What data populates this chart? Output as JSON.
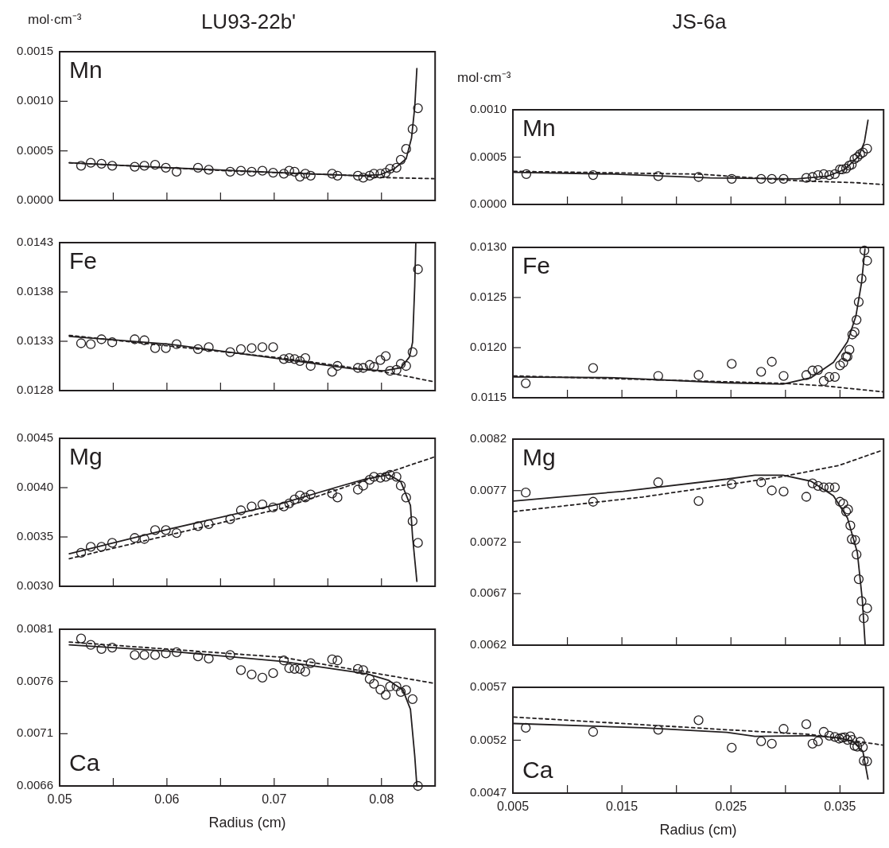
{
  "chart_data": [
    {
      "type": "scatter",
      "title": "LU93-22b'",
      "ylabel": "mol·cm⁻³",
      "annotations": [
        "Mn"
      ],
      "xlim": [
        0.05,
        0.085
      ],
      "xticks": [
        0.05,
        {
          "value": 0.055,
          "label": null
        },
        0.06,
        {
          "value": 0.065,
          "label": null
        },
        0.07,
        {
          "value": 0.075,
          "label": null
        },
        0.08
      ],
      "ylim": [
        0,
        0.0015
      ],
      "yticks": [
        {
          "value": 0,
          "label": "0.0000"
        },
        {
          "value": 0.0005,
          "label": "0.0005"
        },
        {
          "value": 0.001,
          "label": "0.0010"
        },
        {
          "value": 0.0015,
          "label": "0.0015"
        }
      ],
      "tick_labels": "y",
      "grid": false,
      "legend": false,
      "series": [
        {
          "type": "scatter",
          "marker": "circle",
          "color": "#231f20",
          "x": [
            0.052,
            0.0529,
            0.0539,
            0.0549,
            0.057,
            0.0579,
            0.0589,
            0.0599,
            0.0609,
            0.0629,
            0.0639,
            0.0659,
            0.0669,
            0.0679,
            0.0689,
            0.0699,
            0.0709,
            0.0714,
            0.0719,
            0.0724,
            0.0729,
            0.0734,
            0.0754,
            0.0759,
            0.0778,
            0.0783,
            0.0789,
            0.0793,
            0.0799,
            0.0804,
            0.0808,
            0.0814,
            0.0818,
            0.0823,
            0.0829,
            0.0834
          ],
          "values": [
            0.00035,
            0.00038,
            0.00037,
            0.00035,
            0.00034,
            0.00035,
            0.00036,
            0.00033,
            0.00029,
            0.00033,
            0.00031,
            0.00029,
            0.0003,
            0.00029,
            0.0003,
            0.00028,
            0.00027,
            0.0003,
            0.00029,
            0.00024,
            0.00027,
            0.00025,
            0.00027,
            0.00025,
            0.00025,
            0.00023,
            0.00025,
            0.00027,
            0.00027,
            0.00028,
            0.00032,
            0.00033,
            0.00041,
            0.00052,
            0.00072,
            0.00093
          ]
        },
        {
          "type": "line",
          "marker": "none",
          "line_style": "solid",
          "color": "#231f20",
          "x": [
            0.0509,
            0.0602,
            0.0707,
            0.0778,
            0.0799,
            0.0812,
            0.0823,
            0.0828,
            0.0831,
            0.0833
          ],
          "values": [
            0.00038,
            0.00033,
            0.00028,
            0.00025,
            0.00026,
            0.00032,
            0.00042,
            0.00063,
            0.00094,
            0.00133
          ]
        },
        {
          "type": "line",
          "marker": "none",
          "line_style": "dashed",
          "color": "#231f20",
          "x": [
            0.0509,
            0.0655,
            0.0778,
            0.0804,
            0.0849
          ],
          "values": [
            0.00038,
            0.0003,
            0.00025,
            0.00023,
            0.00022
          ]
        }
      ]
    },
    {
      "type": "scatter",
      "title": "JS-6a",
      "ylabel": "mol·cm⁻³",
      "annotations": [
        "Mn"
      ],
      "xlim": [
        0.005,
        0.039
      ],
      "xticks": [
        0.005,
        {
          "value": 0.01,
          "label": null
        },
        0.015,
        {
          "value": 0.02,
          "label": null
        },
        0.025,
        {
          "value": 0.03,
          "label": null
        },
        0.035
      ],
      "ylim": [
        0,
        0.001
      ],
      "yticks": [
        {
          "value": 0,
          "label": "0.0000"
        },
        {
          "value": 0.0005,
          "label": "0.0005"
        },
        {
          "value": 0.001,
          "label": "0.0010"
        }
      ],
      "tick_labels": "y",
      "grid": false,
      "legend": false,
      "series": [
        {
          "type": "scatter",
          "marker": "circle",
          "color": "#231f20",
          "x": [
            0.00623,
            0.01236,
            0.01833,
            0.02203,
            0.02507,
            0.02777,
            0.02875,
            0.02983,
            0.03191,
            0.03248,
            0.03299,
            0.03351,
            0.03402,
            0.03453,
            0.035,
            0.03523,
            0.03556,
            0.03585,
            0.03608,
            0.03633,
            0.03659,
            0.03685,
            0.0371,
            0.03749
          ],
          "values": [
            0.00032,
            0.00031,
            0.0003,
            0.00029,
            0.00027,
            0.00027,
            0.00027,
            0.00027,
            0.00028,
            0.00029,
            0.00031,
            0.00032,
            0.00031,
            0.00032,
            0.00037,
            0.00037,
            0.00038,
            0.00041,
            0.00042,
            0.00048,
            0.0005,
            0.00053,
            0.00055,
            0.00059
          ]
        },
        {
          "type": "line",
          "marker": "none",
          "line_style": "solid",
          "color": "#231f20",
          "x": [
            0.00508,
            0.01434,
            0.02309,
            0.03106,
            0.03389,
            0.03543,
            0.03672,
            0.03724,
            0.03757
          ],
          "values": [
            0.00034,
            0.00032,
            0.00028,
            0.00027,
            0.0003,
            0.00037,
            0.00051,
            0.00066,
            0.00089
          ]
        },
        {
          "type": "line",
          "marker": "none",
          "line_style": "dashed",
          "color": "#231f20",
          "x": [
            0.00508,
            0.02206,
            0.03106,
            0.03646,
            0.03891
          ],
          "values": [
            0.00035,
            0.00032,
            0.00025,
            0.00023,
            0.00021
          ]
        }
      ]
    },
    {
      "type": "scatter",
      "annotations": [
        "Fe"
      ],
      "xlim": [
        0.05,
        0.085
      ],
      "xticks": [
        0.05,
        {
          "value": 0.055,
          "label": null
        },
        0.06,
        {
          "value": 0.065,
          "label": null
        },
        0.07,
        {
          "value": 0.075,
          "label": null
        },
        0.08
      ],
      "ylim": [
        0.0128,
        0.0143
      ],
      "yticks": [
        {
          "value": 0.0128,
          "label": "0.0128"
        },
        {
          "value": 0.0133,
          "label": "0.0133"
        },
        {
          "value": 0.0138,
          "label": "0.0138"
        },
        {
          "value": 0.0143,
          "label": "0.0143"
        }
      ],
      "tick_labels": "y",
      "grid": false,
      "legend": false,
      "series": [
        {
          "type": "scatter",
          "marker": "circle",
          "color": "#231f20",
          "x": [
            0.052,
            0.0529,
            0.0539,
            0.0549,
            0.057,
            0.0579,
            0.0589,
            0.0599,
            0.0609,
            0.0629,
            0.0639,
            0.0659,
            0.0669,
            0.0679,
            0.0689,
            0.0699,
            0.0709,
            0.0714,
            0.0719,
            0.0724,
            0.0729,
            0.0734,
            0.0754,
            0.0759,
            0.0778,
            0.0783,
            0.0789,
            0.0793,
            0.0799,
            0.0804,
            0.0808,
            0.0814,
            0.0818,
            0.0823,
            0.0829,
            0.0834
          ],
          "values": [
            0.01328,
            0.01327,
            0.01332,
            0.01329,
            0.01332,
            0.01331,
            0.01323,
            0.01323,
            0.01327,
            0.01322,
            0.01324,
            0.01319,
            0.01322,
            0.01323,
            0.01324,
            0.01324,
            0.01312,
            0.01313,
            0.01312,
            0.0131,
            0.01313,
            0.01305,
            0.01299,
            0.01305,
            0.01303,
            0.01303,
            0.01306,
            0.01304,
            0.01311,
            0.01315,
            0.013,
            0.01301,
            0.01307,
            0.01305,
            0.01319,
            0.01403
          ]
        },
        {
          "type": "line",
          "marker": "none",
          "line_style": "solid",
          "color": "#231f20",
          "x": [
            0.0509,
            0.0602,
            0.0707,
            0.0773,
            0.0802,
            0.0818,
            0.0826,
            0.0829,
            0.0831,
            0.0832
          ],
          "values": [
            0.01335,
            0.01327,
            0.01312,
            0.01302,
            0.013,
            0.01303,
            0.01314,
            0.01329,
            0.01386,
            0.0143
          ]
        },
        {
          "type": "line",
          "marker": "none",
          "line_style": "dashed",
          "color": "#231f20",
          "x": [
            0.0509,
            0.0707,
            0.0802,
            0.0849
          ],
          "values": [
            0.01336,
            0.01313,
            0.01299,
            0.01289
          ]
        }
      ]
    },
    {
      "type": "scatter",
      "annotations": [
        "Fe"
      ],
      "xlim": [
        0.005,
        0.039
      ],
      "xticks": [
        0.005,
        {
          "value": 0.01,
          "label": null
        },
        0.015,
        {
          "value": 0.02,
          "label": null
        },
        0.025,
        {
          "value": 0.03,
          "label": null
        },
        0.035
      ],
      "ylim": [
        0.0115,
        0.013
      ],
      "yticks": [
        {
          "value": 0.0115,
          "label": "0.0115"
        },
        {
          "value": 0.012,
          "label": "0.0120"
        },
        {
          "value": 0.0125,
          "label": "0.0125"
        },
        {
          "value": 0.013,
          "label": "0.0130"
        }
      ],
      "tick_labels": "y",
      "grid": false,
      "legend": false,
      "series": [
        {
          "type": "scatter",
          "marker": "circle",
          "color": "#231f20",
          "x": [
            0.00618,
            0.01236,
            0.01833,
            0.02203,
            0.02507,
            0.02777,
            0.02875,
            0.02983,
            0.03191,
            0.03248,
            0.03299,
            0.03351,
            0.03402,
            0.03453,
            0.035,
            0.0353,
            0.03556,
            0.03569,
            0.03587,
            0.03613,
            0.03634,
            0.03652,
            0.03672,
            0.03698,
            0.03724,
            0.03749
          ],
          "values": [
            0.011644,
            0.011797,
            0.011718,
            0.011726,
            0.011838,
            0.011759,
            0.011859,
            0.011718,
            0.011726,
            0.011772,
            0.011777,
            0.011667,
            0.011708,
            0.011708,
            0.011823,
            0.011849,
            0.01191,
            0.01191,
            0.011979,
            0.012131,
            0.012156,
            0.012277,
            0.012456,
            0.012687,
            0.012969,
            0.012867
          ]
        },
        {
          "type": "line",
          "marker": "none",
          "line_style": "solid",
          "color": "#231f20",
          "x": [
            0.00508,
            0.01434,
            0.02463,
            0.02977,
            0.03235,
            0.0344,
            0.03569,
            0.03646,
            0.03698,
            0.03729
          ],
          "values": [
            0.011708,
            0.0117,
            0.011649,
            0.011636,
            0.0117,
            0.011854,
            0.012059,
            0.012315,
            0.012649,
            0.012982
          ]
        },
        {
          "type": "line",
          "marker": "none",
          "line_style": "dashed",
          "color": "#231f20",
          "x": [
            0.00508,
            0.02977,
            0.03363,
            0.03891
          ],
          "values": [
            0.011718,
            0.011644,
            0.011618,
            0.011559
          ]
        }
      ]
    },
    {
      "type": "scatter",
      "annotations": [
        "Mg"
      ],
      "xlim": [
        0.05,
        0.085
      ],
      "xticks": [
        0.05,
        {
          "value": 0.055,
          "label": null
        },
        0.06,
        {
          "value": 0.065,
          "label": null
        },
        0.07,
        {
          "value": 0.075,
          "label": null
        },
        0.08
      ],
      "ylim": [
        0.003,
        0.0045
      ],
      "yticks": [
        {
          "value": 0.003,
          "label": "0.0030"
        },
        {
          "value": 0.0035,
          "label": "0.0035"
        },
        {
          "value": 0.004,
          "label": "0.0040"
        },
        {
          "value": 0.0045,
          "label": "0.0045"
        }
      ],
      "tick_labels": "y",
      "grid": false,
      "legend": false,
      "series": [
        {
          "type": "scatter",
          "marker": "circle",
          "color": "#231f20",
          "x": [
            0.052,
            0.0529,
            0.0539,
            0.0549,
            0.057,
            0.0579,
            0.0589,
            0.0599,
            0.0609,
            0.0629,
            0.0639,
            0.0659,
            0.0669,
            0.0679,
            0.0689,
            0.0699,
            0.0709,
            0.0714,
            0.0719,
            0.0724,
            0.0729,
            0.0734,
            0.0754,
            0.0759,
            0.0778,
            0.0783,
            0.0789,
            0.0793,
            0.0799,
            0.0804,
            0.0808,
            0.0814,
            0.0818,
            0.0823,
            0.0829,
            0.0834
          ],
          "values": [
            0.00334,
            0.0034,
            0.0034,
            0.00344,
            0.00349,
            0.00348,
            0.00357,
            0.00357,
            0.00354,
            0.00361,
            0.00363,
            0.00368,
            0.00377,
            0.00381,
            0.00383,
            0.0038,
            0.00381,
            0.00384,
            0.00388,
            0.00392,
            0.0039,
            0.00393,
            0.00394,
            0.0039,
            0.00398,
            0.00402,
            0.00408,
            0.00411,
            0.0041,
            0.00411,
            0.00413,
            0.00411,
            0.00402,
            0.0039,
            0.00366,
            0.00344
          ]
        },
        {
          "type": "line",
          "marker": "none",
          "line_style": "solid",
          "color": "#231f20",
          "x": [
            0.0509,
            0.0602,
            0.0707,
            0.076,
            0.0786,
            0.0807,
            0.0818,
            0.0827,
            0.0829,
            0.0833
          ],
          "values": [
            0.00333,
            0.00358,
            0.00384,
            0.00401,
            0.00409,
            0.00413,
            0.00406,
            0.00382,
            0.0035,
            0.00305
          ]
        },
        {
          "type": "line",
          "marker": "none",
          "line_style": "dashed",
          "color": "#231f20",
          "x": [
            0.0509,
            0.0707,
            0.0849
          ],
          "values": [
            0.00328,
            0.00379,
            0.00431
          ]
        }
      ]
    },
    {
      "type": "scatter",
      "annotations": [
        "Mg"
      ],
      "xlim": [
        0.005,
        0.039
      ],
      "xticks": [
        0.005,
        {
          "value": 0.01,
          "label": null
        },
        0.015,
        {
          "value": 0.02,
          "label": null
        },
        0.025,
        {
          "value": 0.03,
          "label": null
        },
        0.035
      ],
      "ylim": [
        0.0062,
        0.0082
      ],
      "yticks": [
        {
          "value": 0.0062,
          "label": "0.0062"
        },
        {
          "value": 0.0067,
          "label": "0.0067"
        },
        {
          "value": 0.0072,
          "label": "0.0072"
        },
        {
          "value": 0.0077,
          "label": "0.0077"
        },
        {
          "value": 0.0082,
          "label": "0.0082"
        }
      ],
      "tick_labels": "y",
      "grid": false,
      "legend": false,
      "series": [
        {
          "type": "scatter",
          "marker": "circle",
          "color": "#231f20",
          "x": [
            0.00618,
            0.01236,
            0.01833,
            0.02203,
            0.02507,
            0.02777,
            0.02875,
            0.02983,
            0.03191,
            0.03248,
            0.03299,
            0.03351,
            0.03402,
            0.03453,
            0.035,
            0.0353,
            0.03556,
            0.03574,
            0.03595,
            0.03608,
            0.03639,
            0.03652,
            0.03672,
            0.03698,
            0.03718,
            0.03749
          ],
          "values": [
            0.007681,
            0.007592,
            0.007781,
            0.007599,
            0.007763,
            0.007781,
            0.007702,
            0.007691,
            0.00764,
            0.007771,
            0.007745,
            0.007732,
            0.007732,
            0.007732,
            0.007592,
            0.007574,
            0.007497,
            0.007517,
            0.007361,
            0.007228,
            0.007221,
            0.00708,
            0.00684,
            0.006627,
            0.006461,
            0.006558
          ]
        },
        {
          "type": "line",
          "marker": "none",
          "line_style": "solid",
          "color": "#231f20",
          "x": [
            0.00508,
            0.01511,
            0.02463,
            0.0272,
            0.02977,
            0.03235,
            0.0344,
            0.03569,
            0.03659,
            0.03705,
            0.03731
          ],
          "values": [
            0.007599,
            0.007694,
            0.007812,
            0.00785,
            0.00785,
            0.007791,
            0.00765,
            0.007433,
            0.0071,
            0.00664,
            0.0062
          ]
        },
        {
          "type": "line",
          "marker": "none",
          "line_style": "dashed",
          "color": "#231f20",
          "x": [
            0.00508,
            0.01691,
            0.02977,
            0.03492,
            0.03891
          ],
          "values": [
            0.007497,
            0.007638,
            0.007837,
            0.007945,
            0.008093
          ]
        }
      ]
    },
    {
      "type": "scatter",
      "annotations": [
        "Ca"
      ],
      "xlabel": "Radius (cm)",
      "xlim": [
        0.05,
        0.085
      ],
      "xticks": [
        0.05,
        {
          "value": 0.055,
          "label": null
        },
        0.06,
        {
          "value": 0.065,
          "label": null
        },
        0.07,
        {
          "value": 0.075,
          "label": null
        },
        0.08
      ],
      "ylim": [
        0.0066,
        0.0081
      ],
      "yticks": [
        {
          "value": 0.0066,
          "label": "0.0066"
        },
        {
          "value": 0.0071,
          "label": "0.0071"
        },
        {
          "value": 0.0076,
          "label": "0.0076"
        },
        {
          "value": 0.0081,
          "label": "0.0081"
        }
      ],
      "grid": false,
      "legend": false,
      "series": [
        {
          "type": "scatter",
          "marker": "circle",
          "color": "#231f20",
          "x": [
            0.052,
            0.0529,
            0.0539,
            0.0549,
            0.057,
            0.0579,
            0.0589,
            0.0599,
            0.0609,
            0.0629,
            0.0639,
            0.0659,
            0.0669,
            0.0679,
            0.0689,
            0.0699,
            0.0709,
            0.0714,
            0.0719,
            0.0724,
            0.0729,
            0.0734,
            0.0754,
            0.0759,
            0.0778,
            0.0783,
            0.0789,
            0.0793,
            0.0799,
            0.0804,
            0.0808,
            0.0814,
            0.0818,
            0.0823,
            0.0829,
            0.0834
          ],
          "values": [
            0.008011,
            0.00795,
            0.007911,
            0.007924,
            0.007853,
            0.007853,
            0.007853,
            0.007869,
            0.00788,
            0.00784,
            0.007819,
            0.007853,
            0.007709,
            0.007667,
            0.007636,
            0.00768,
            0.007801,
            0.007727,
            0.00772,
            0.00772,
            0.007693,
            0.007775,
            0.007811,
            0.007801,
            0.00772,
            0.007709,
            0.007623,
            0.007578,
            0.007523,
            0.007471,
            0.007552,
            0.007552,
            0.007499,
            0.007518,
            0.007431,
            0.0066
          ]
        },
        {
          "type": "line",
          "marker": "none",
          "line_style": "solid",
          "color": "#231f20",
          "x": [
            0.0509,
            0.0602,
            0.0707,
            0.0786,
            0.0807,
            0.082,
            0.0827,
            0.0831,
            0.0833
          ],
          "values": [
            0.00795,
            0.00789,
            0.007793,
            0.007675,
            0.007609,
            0.007518,
            0.007334,
            0.006888,
            0.0066
          ]
        },
        {
          "type": "line",
          "marker": "none",
          "line_style": "dashed",
          "color": "#231f20",
          "x": [
            0.0509,
            0.0707,
            0.0849
          ],
          "values": [
            0.007977,
            0.007832,
            0.007583
          ]
        }
      ]
    },
    {
      "type": "scatter",
      "annotations": [
        "Ca"
      ],
      "xlabel": "Radius (cm)",
      "xlim": [
        0.005,
        0.039
      ],
      "xticks": [
        0.005,
        {
          "value": 0.01,
          "label": null
        },
        0.015,
        {
          "value": 0.02,
          "label": null
        },
        0.025,
        {
          "value": 0.03,
          "label": null
        },
        0.035
      ],
      "ylim": [
        0.0047,
        0.0057
      ],
      "yticks": [
        {
          "value": 0.0047,
          "label": "0.0047"
        },
        {
          "value": 0.0052,
          "label": "0.0052"
        },
        {
          "value": 0.0057,
          "label": "0.0057"
        }
      ],
      "grid": false,
      "legend": false,
      "series": [
        {
          "type": "scatter",
          "marker": "circle",
          "color": "#231f20",
          "x": [
            0.00618,
            0.01236,
            0.01833,
            0.02203,
            0.02507,
            0.02777,
            0.02875,
            0.02983,
            0.03191,
            0.03248,
            0.03299,
            0.03351,
            0.03402,
            0.03453,
            0.03492,
            0.03518,
            0.03543,
            0.03569,
            0.03595,
            0.03613,
            0.03634,
            0.03659,
            0.03685,
            0.0371,
            0.03718,
            0.03749
          ],
          "values": [
            0.005317,
            0.005279,
            0.005299,
            0.005389,
            0.005129,
            0.00519,
            0.005167,
            0.005307,
            0.005351,
            0.005167,
            0.00519,
            0.005279,
            0.005243,
            0.005231,
            0.005215,
            0.005223,
            0.005228,
            0.005203,
            0.005236,
            0.005203,
            0.005146,
            0.005139,
            0.005185,
            0.005134,
            0.005006,
            0.005
          ]
        },
        {
          "type": "line",
          "marker": "none",
          "line_style": "solid",
          "color": "#231f20",
          "x": [
            0.00508,
            0.01691,
            0.02463,
            0.0272,
            0.03235,
            0.03492,
            0.03621,
            0.0371,
            0.03757
          ],
          "values": [
            0.005358,
            0.005317,
            0.005274,
            0.005236,
            0.005243,
            0.005223,
            0.005185,
            0.005095,
            0.004833
          ]
        },
        {
          "type": "line",
          "marker": "none",
          "line_style": "dashed",
          "color": "#231f20",
          "x": [
            0.00508,
            0.02463,
            0.03235,
            0.03891
          ],
          "values": [
            0.005419,
            0.005299,
            0.005254,
            0.005154
          ]
        }
      ]
    }
  ]
}
